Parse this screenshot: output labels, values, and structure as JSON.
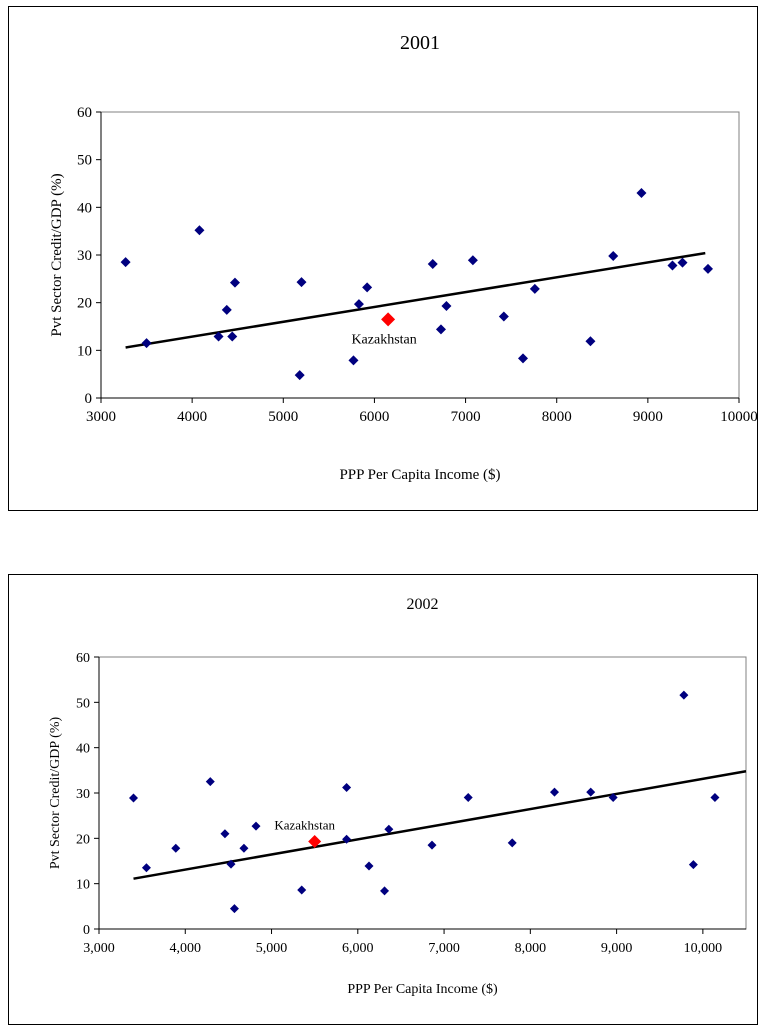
{
  "chart_data": [
    {
      "type": "scatter",
      "title": "2001",
      "xlabel": "PPP Per Capita Income ($)",
      "ylabel": "Pvt Sector Credit/GDP (%)",
      "xlim": [
        3000,
        10000
      ],
      "ylim": [
        0,
        60
      ],
      "xticks": [
        3000,
        4000,
        5000,
        6000,
        7000,
        8000,
        9000,
        10000
      ],
      "xtick_labels": [
        "3000",
        "4000",
        "5000",
        "6000",
        "7000",
        "8000",
        "9000",
        "10000"
      ],
      "yticks": [
        0,
        10,
        20,
        30,
        40,
        50,
        60
      ],
      "ytick_labels": [
        "0",
        "10",
        "20",
        "30",
        "40",
        "50",
        "60"
      ],
      "plot_border": true,
      "grid": false,
      "points": [
        [
          3270,
          28.5
        ],
        [
          3500,
          11.5
        ],
        [
          4080,
          35.2
        ],
        [
          4290,
          12.9
        ],
        [
          4380,
          18.5
        ],
        [
          4440,
          12.9
        ],
        [
          4470,
          24.2
        ],
        [
          5180,
          4.8
        ],
        [
          5200,
          24.3
        ],
        [
          5770,
          7.9
        ],
        [
          5830,
          19.7
        ],
        [
          5920,
          23.2
        ],
        [
          6640,
          28.1
        ],
        [
          6730,
          14.4
        ],
        [
          6790,
          19.3
        ],
        [
          7080,
          28.9
        ],
        [
          7420,
          17.1
        ],
        [
          7630,
          8.3
        ],
        [
          7760,
          22.9
        ],
        [
          8370,
          11.9
        ],
        [
          8620,
          29.8
        ],
        [
          8930,
          43.0
        ],
        [
          9270,
          27.8
        ],
        [
          9380,
          28.4
        ],
        [
          9660,
          27.1
        ]
      ],
      "highlight": {
        "label": "Kazakhstan",
        "x": 6150,
        "y": 16.5,
        "color": "#ff0000"
      },
      "trendline": {
        "x1": 3270,
        "y1": 10.6,
        "x2": 9630,
        "y2": 30.4
      },
      "point_color": "#00007f",
      "line_color": "#000000"
    },
    {
      "type": "scatter",
      "title": "2002",
      "xlabel": "PPP Per Capita Income ($)",
      "ylabel": "Pvt Sector Credit/GDP (%)",
      "xlim": [
        3000,
        10500
      ],
      "ylim": [
        0,
        60
      ],
      "xticks": [
        3000,
        4000,
        5000,
        6000,
        7000,
        8000,
        9000,
        10000
      ],
      "xtick_labels": [
        "3,000",
        "4,000",
        "5,000",
        "6,000",
        "7,000",
        "8,000",
        "9,000",
        "10,000"
      ],
      "yticks": [
        0,
        10,
        20,
        30,
        40,
        50,
        60
      ],
      "ytick_labels": [
        "0",
        "10",
        "20",
        "30",
        "40",
        "50",
        "60"
      ],
      "plot_border": true,
      "grid": false,
      "points": [
        [
          3400,
          28.9
        ],
        [
          3550,
          13.5
        ],
        [
          3890,
          17.8
        ],
        [
          4290,
          32.5
        ],
        [
          4460,
          21.0
        ],
        [
          4530,
          14.3
        ],
        [
          4570,
          4.5
        ],
        [
          4680,
          17.8
        ],
        [
          4820,
          22.7
        ],
        [
          5350,
          8.6
        ],
        [
          5870,
          19.8
        ],
        [
          5870,
          31.2
        ],
        [
          6130,
          13.9
        ],
        [
          6310,
          8.4
        ],
        [
          6360,
          22.0
        ],
        [
          6860,
          18.5
        ],
        [
          7280,
          29.0
        ],
        [
          7790,
          19.0
        ],
        [
          8280,
          30.2
        ],
        [
          8700,
          30.2
        ],
        [
          8960,
          29.0
        ],
        [
          9780,
          51.6
        ],
        [
          9890,
          14.2
        ],
        [
          10140,
          29.0
        ]
      ],
      "highlight": {
        "label": "Kazakhstan",
        "x": 5500,
        "y": 19.3,
        "color": "#ff0000"
      },
      "trendline": {
        "x1": 3400,
        "y1": 11.1,
        "x2": 10500,
        "y2": 34.8
      },
      "point_color": "#00007f",
      "line_color": "#000000"
    }
  ]
}
